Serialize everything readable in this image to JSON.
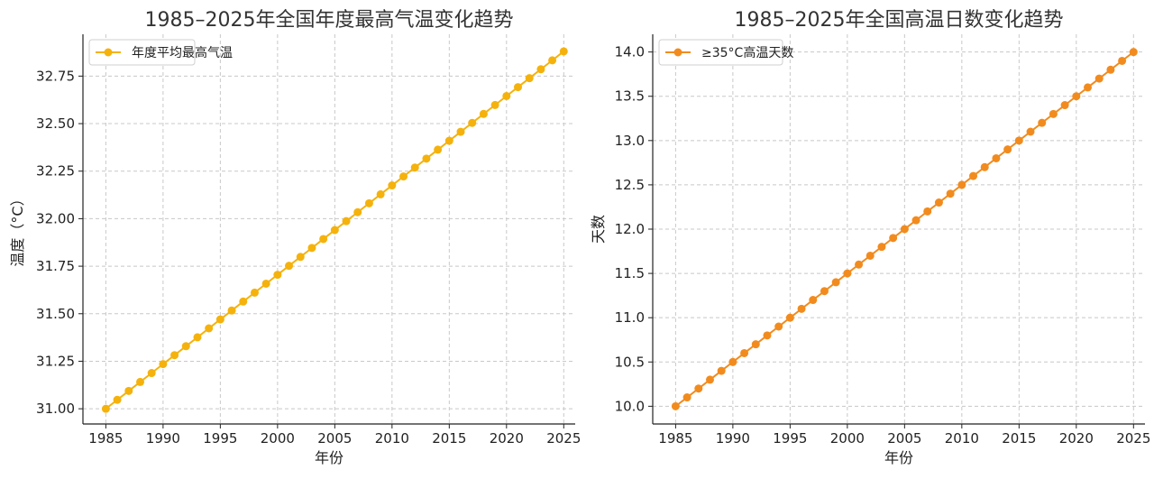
{
  "chart_data": [
    {
      "type": "line",
      "title": "1985–2025年全国年度最高气温变化趋势",
      "xlabel": "年份",
      "ylabel": "温度（°C）",
      "xlim": [
        1983.0,
        2026.0
      ],
      "ylim": [
        30.92,
        32.97
      ],
      "xticks": [
        1985,
        1990,
        1995,
        2000,
        2005,
        2010,
        2015,
        2020,
        2025
      ],
      "yticks": [
        31.0,
        31.25,
        31.5,
        31.75,
        32.0,
        32.25,
        32.5,
        32.75
      ],
      "ytick_labels": [
        "31.00",
        "31.25",
        "31.50",
        "31.75",
        "32.00",
        "32.25",
        "32.50",
        "32.75"
      ],
      "grid": true,
      "legend_position": "top-left",
      "color": "#f5b20c",
      "series": [
        {
          "name": "年度平均最高气温",
          "x": [
            1985,
            1986,
            1987,
            1988,
            1989,
            1990,
            1991,
            1992,
            1993,
            1994,
            1995,
            1996,
            1997,
            1998,
            1999,
            2000,
            2001,
            2002,
            2003,
            2004,
            2005,
            2006,
            2007,
            2008,
            2009,
            2010,
            2011,
            2012,
            2013,
            2014,
            2015,
            2016,
            2017,
            2018,
            2019,
            2020,
            2021,
            2022,
            2023,
            2024,
            2025
          ],
          "y": [
            31.0,
            31.047,
            31.094,
            31.141,
            31.188,
            31.235,
            31.282,
            31.329,
            31.376,
            31.423,
            31.47,
            31.517,
            31.564,
            31.611,
            31.658,
            31.705,
            31.752,
            31.799,
            31.846,
            31.893,
            31.94,
            31.987,
            32.034,
            32.081,
            32.128,
            32.175,
            32.222,
            32.269,
            32.316,
            32.363,
            32.41,
            32.457,
            32.504,
            32.551,
            32.598,
            32.645,
            32.692,
            32.739,
            32.786,
            32.833,
            32.88
          ]
        }
      ]
    },
    {
      "type": "line",
      "title": "1985–2025年全国高温日数变化趋势",
      "xlabel": "年份",
      "ylabel": "天数",
      "xlim": [
        1983.0,
        2026.0
      ],
      "ylim": [
        9.8,
        14.2
      ],
      "xticks": [
        1985,
        1990,
        1995,
        2000,
        2005,
        2010,
        2015,
        2020,
        2025
      ],
      "yticks": [
        10.0,
        10.5,
        11.0,
        11.5,
        12.0,
        12.5,
        13.0,
        13.5,
        14.0
      ],
      "ytick_labels": [
        "10.0",
        "10.5",
        "11.0",
        "11.5",
        "12.0",
        "12.5",
        "13.0",
        "13.5",
        "14.0"
      ],
      "grid": true,
      "legend_position": "top-left",
      "color": "#f28b1e",
      "series": [
        {
          "name": "≥35°C高温天数",
          "x": [
            1985,
            1986,
            1987,
            1988,
            1989,
            1990,
            1991,
            1992,
            1993,
            1994,
            1995,
            1996,
            1997,
            1998,
            1999,
            2000,
            2001,
            2002,
            2003,
            2004,
            2005,
            2006,
            2007,
            2008,
            2009,
            2010,
            2011,
            2012,
            2013,
            2014,
            2015,
            2016,
            2017,
            2018,
            2019,
            2020,
            2021,
            2022,
            2023,
            2024,
            2025
          ],
          "y": [
            10.0,
            10.1,
            10.2,
            10.3,
            10.4,
            10.5,
            10.6,
            10.7,
            10.8,
            10.9,
            11.0,
            11.1,
            11.2,
            11.3,
            11.4,
            11.5,
            11.6,
            11.7,
            11.8,
            11.9,
            12.0,
            12.1,
            12.2,
            12.3,
            12.4,
            12.5,
            12.6,
            12.7,
            12.8,
            12.9,
            13.0,
            13.1,
            13.2,
            13.3,
            13.4,
            13.5,
            13.6,
            13.7,
            13.8,
            13.9,
            14.0
          ]
        }
      ]
    }
  ]
}
